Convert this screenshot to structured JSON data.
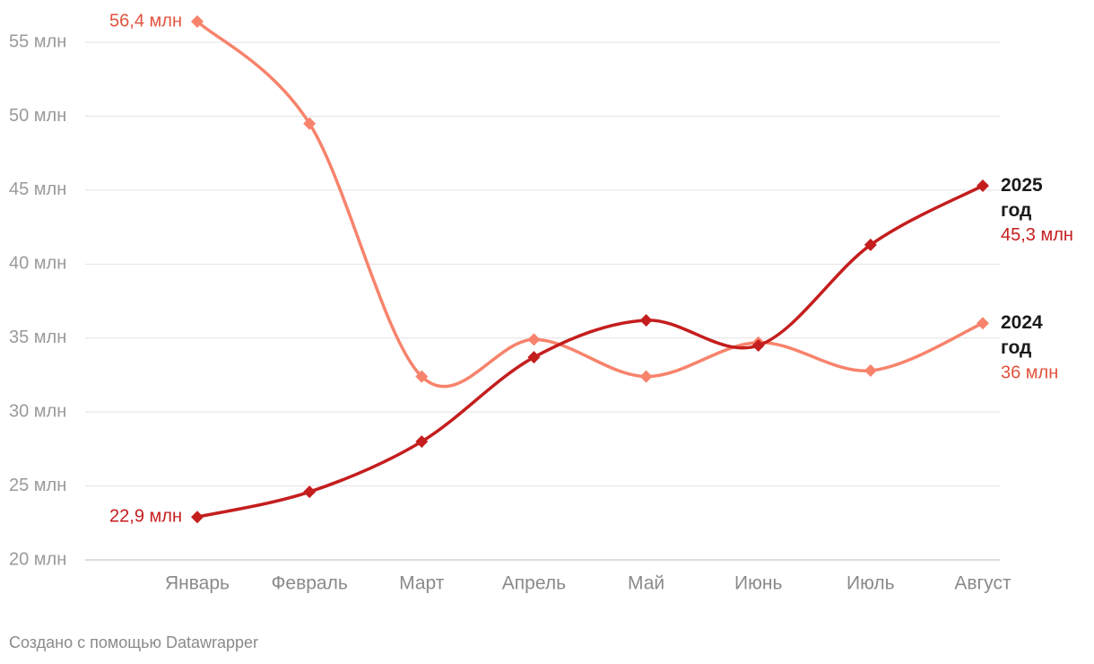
{
  "chart_data": {
    "type": "line",
    "categories": [
      "Январь",
      "Февраль",
      "Март",
      "Апрель",
      "Май",
      "Июнь",
      "Июль",
      "Август"
    ],
    "series": [
      {
        "name": "2024 год",
        "color": "#f7836c",
        "label_color": "#e2533d",
        "values": [
          56.4,
          49.5,
          32.4,
          34.9,
          32.4,
          34.7,
          32.8,
          36
        ],
        "value_labels": [
          "56,4 млн",
          null,
          null,
          null,
          null,
          null,
          null,
          "36 млн"
        ]
      },
      {
        "name": "2025 год",
        "color": "#c41e1e",
        "label_color": "#c41e1e",
        "values": [
          22.9,
          24.6,
          28.0,
          33.7,
          36.2,
          34.5,
          41.3,
          45.3
        ],
        "value_labels": [
          "22,9 млн",
          null,
          null,
          null,
          null,
          null,
          null,
          "45,3 млн"
        ]
      }
    ],
    "ylim": [
      20,
      56.4
    ],
    "yticks": [
      {
        "value": 20,
        "label": "20 млн"
      },
      {
        "value": 25,
        "label": "25 млн"
      },
      {
        "value": 30,
        "label": "30 млн"
      },
      {
        "value": 35,
        "label": "35 млн"
      },
      {
        "value": 40,
        "label": "40 млн"
      },
      {
        "value": 45,
        "label": "45 млн"
      },
      {
        "value": 50,
        "label": "50 млн"
      },
      {
        "value": 55,
        "label": "55 млн"
      }
    ],
    "grid": true,
    "credit": "Создано с помощью Datawrapper"
  }
}
